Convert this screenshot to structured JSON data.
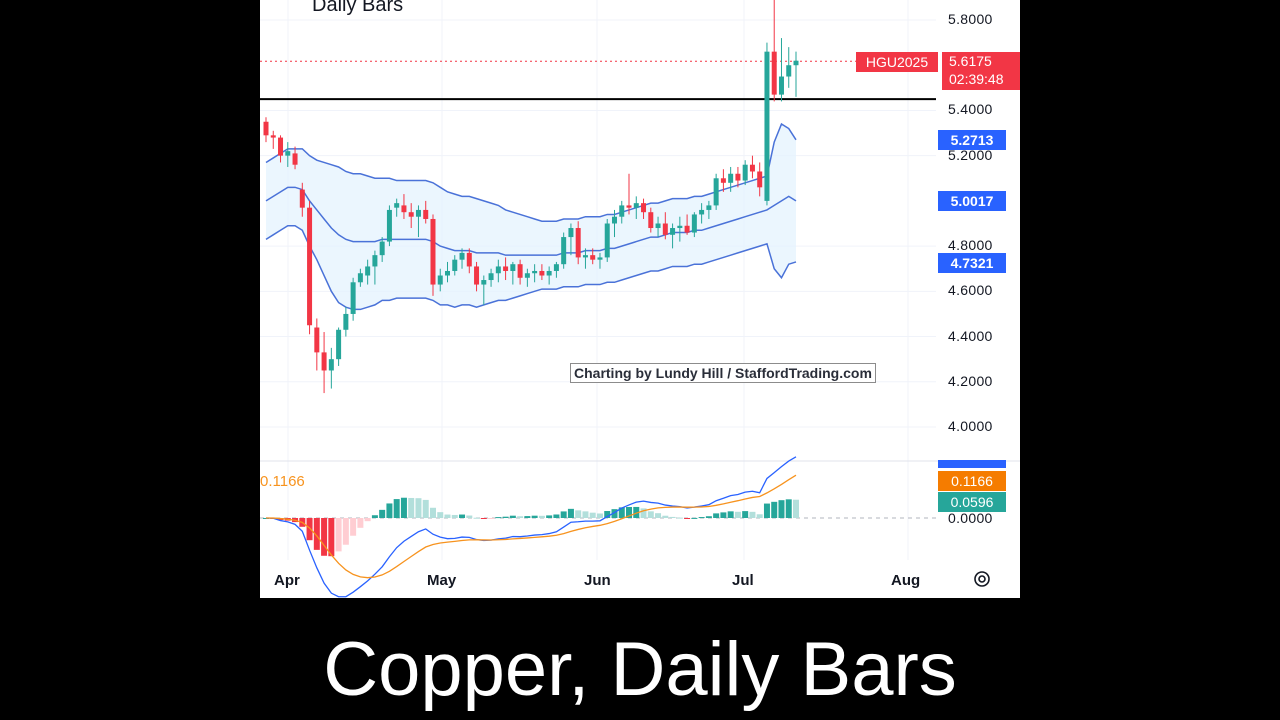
{
  "caption": "Copper, Daily Bars",
  "chart_data": {
    "type": "candlestick",
    "title": "Daily Bars",
    "symbol": "HGU2025",
    "last_price": "5.6175",
    "countdown": "02:39:48",
    "watermark": "Charting by Lundy Hill / StaffordTrading.com",
    "price_axis": {
      "ticks": [
        "5.8000",
        "5.4000",
        "5.2000",
        "4.8000",
        "4.6000",
        "4.4000",
        "4.2000",
        "4.0000"
      ],
      "tick_values": [
        5.8,
        5.4,
        5.2,
        4.8,
        4.6,
        4.4,
        4.2,
        4.0
      ],
      "range": [
        3.95,
        5.85
      ]
    },
    "x_axis_labels": [
      "Apr",
      "May",
      "Jun",
      "Jul",
      "Aug"
    ],
    "horizontal_line": 5.45,
    "bollinger_badges": {
      "upper": "5.2713",
      "middle": "5.0017",
      "lower": "4.7321"
    },
    "macd": {
      "zero_label": "0.0000",
      "left_label": "0.1166",
      "badges": {
        "macd": "0.1166",
        "histogram": "0.0596"
      }
    },
    "colors": {
      "up": "#26a69a",
      "down": "#f23645",
      "band": "#4a72d8",
      "band_fill": "#e3f2fd",
      "signal": "#f7931e",
      "price_tag": "#f23645",
      "badge_blue": "#2962ff",
      "badge_orange": "#f57c00",
      "badge_teal": "#26a69a"
    },
    "candles": [
      [
        5.35,
        5.37,
        5.26,
        5.29
      ],
      [
        5.29,
        5.31,
        5.23,
        5.28
      ],
      [
        5.28,
        5.29,
        5.17,
        5.2
      ],
      [
        5.2,
        5.26,
        5.15,
        5.22
      ],
      [
        5.21,
        5.24,
        5.14,
        5.16
      ],
      [
        5.05,
        5.08,
        4.93,
        4.97
      ],
      [
        4.97,
        5.0,
        4.41,
        4.45
      ],
      [
        4.44,
        4.48,
        4.25,
        4.33
      ],
      [
        4.33,
        4.42,
        4.15,
        4.25
      ],
      [
        4.25,
        4.35,
        4.17,
        4.3
      ],
      [
        4.3,
        4.44,
        4.27,
        4.43
      ],
      [
        4.43,
        4.53,
        4.4,
        4.5
      ],
      [
        4.5,
        4.66,
        4.47,
        4.64
      ],
      [
        4.64,
        4.7,
        4.62,
        4.68
      ],
      [
        4.67,
        4.74,
        4.63,
        4.71
      ],
      [
        4.71,
        4.78,
        4.63,
        4.76
      ],
      [
        4.76,
        4.84,
        4.73,
        4.82
      ],
      [
        4.82,
        4.98,
        4.8,
        4.96
      ],
      [
        4.97,
        5.01,
        4.93,
        4.99
      ],
      [
        4.98,
        5.03,
        4.92,
        4.95
      ],
      [
        4.95,
        4.99,
        4.88,
        4.93
      ],
      [
        4.93,
        4.98,
        4.84,
        4.96
      ],
      [
        4.96,
        5.0,
        4.9,
        4.92
      ],
      [
        4.92,
        4.94,
        4.58,
        4.63
      ],
      [
        4.63,
        4.7,
        4.6,
        4.67
      ],
      [
        4.67,
        4.73,
        4.64,
        4.69
      ],
      [
        4.69,
        4.76,
        4.67,
        4.74
      ],
      [
        4.74,
        4.79,
        4.7,
        4.77
      ],
      [
        4.77,
        4.79,
        4.68,
        4.71
      ],
      [
        4.71,
        4.73,
        4.6,
        4.63
      ],
      [
        4.63,
        4.67,
        4.54,
        4.65
      ],
      [
        4.65,
        4.7,
        4.62,
        4.68
      ],
      [
        4.68,
        4.74,
        4.64,
        4.71
      ],
      [
        4.71,
        4.75,
        4.65,
        4.69
      ],
      [
        4.69,
        4.73,
        4.63,
        4.72
      ],
      [
        4.72,
        4.74,
        4.63,
        4.66
      ],
      [
        4.66,
        4.7,
        4.62,
        4.68
      ],
      [
        4.68,
        4.72,
        4.64,
        4.69
      ],
      [
        4.69,
        4.72,
        4.65,
        4.67
      ],
      [
        4.67,
        4.71,
        4.63,
        4.69
      ],
      [
        4.69,
        4.73,
        4.66,
        4.72
      ],
      [
        4.72,
        4.86,
        4.7,
        4.84
      ],
      [
        4.84,
        4.9,
        4.76,
        4.88
      ],
      [
        4.88,
        4.91,
        4.72,
        4.75
      ],
      [
        4.75,
        4.79,
        4.7,
        4.76
      ],
      [
        4.76,
        4.79,
        4.72,
        4.74
      ],
      [
        4.74,
        4.77,
        4.7,
        4.75
      ],
      [
        4.75,
        4.92,
        4.73,
        4.9
      ],
      [
        4.9,
        4.96,
        4.84,
        4.93
      ],
      [
        4.93,
        5.0,
        4.9,
        4.98
      ],
      [
        4.98,
        5.12,
        4.94,
        4.97
      ],
      [
        4.97,
        5.02,
        4.92,
        4.99
      ],
      [
        4.99,
        5.01,
        4.92,
        4.95
      ],
      [
        4.95,
        4.97,
        4.86,
        4.88
      ],
      [
        4.88,
        4.93,
        4.84,
        4.9
      ],
      [
        4.9,
        4.95,
        4.83,
        4.85
      ],
      [
        4.85,
        4.9,
        4.79,
        4.88
      ],
      [
        4.88,
        4.93,
        4.82,
        4.89
      ],
      [
        4.89,
        4.94,
        4.85,
        4.86
      ],
      [
        4.86,
        4.95,
        4.84,
        4.94
      ],
      [
        4.94,
        4.99,
        4.9,
        4.96
      ],
      [
        4.96,
        5.0,
        4.92,
        4.98
      ],
      [
        4.98,
        5.12,
        4.96,
        5.1
      ],
      [
        5.1,
        5.14,
        5.04,
        5.08
      ],
      [
        5.08,
        5.15,
        5.04,
        5.12
      ],
      [
        5.12,
        5.15,
        5.06,
        5.09
      ],
      [
        5.09,
        5.18,
        5.07,
        5.16
      ],
      [
        5.16,
        5.2,
        5.1,
        5.13
      ],
      [
        5.13,
        5.17,
        5.02,
        5.06
      ],
      [
        5.0,
        5.7,
        4.98,
        5.66
      ],
      [
        5.66,
        5.9,
        5.44,
        5.47
      ],
      [
        5.47,
        5.72,
        5.44,
        5.55
      ],
      [
        5.55,
        5.68,
        5.5,
        5.6
      ],
      [
        5.6,
        5.66,
        5.46,
        5.62
      ]
    ],
    "bb_mid": [
      5.0,
      5.02,
      5.04,
      5.06,
      5.06,
      5.05,
      5.0,
      4.96,
      4.92,
      4.88,
      4.85,
      4.83,
      4.82,
      4.82,
      4.82,
      4.82,
      4.83,
      4.83,
      4.83,
      4.83,
      4.83,
      4.83,
      4.83,
      4.82,
      4.8,
      4.79,
      4.78,
      4.78,
      4.78,
      4.77,
      4.77,
      4.77,
      4.77,
      4.76,
      4.76,
      4.76,
      4.76,
      4.76,
      4.76,
      4.76,
      4.76,
      4.77,
      4.77,
      4.77,
      4.78,
      4.78,
      4.78,
      4.79,
      4.79,
      4.8,
      4.81,
      4.82,
      4.83,
      4.84,
      4.84,
      4.85,
      4.86,
      4.86,
      4.86,
      4.87,
      4.87,
      4.88,
      4.89,
      4.9,
      4.91,
      4.92,
      4.93,
      4.94,
      4.95,
      4.96,
      4.98,
      5.0,
      5.02,
      5.0
    ],
    "bb_width": [
      0.17,
      0.17,
      0.17,
      0.17,
      0.17,
      0.18,
      0.2,
      0.22,
      0.25,
      0.28,
      0.3,
      0.3,
      0.3,
      0.3,
      0.29,
      0.28,
      0.27,
      0.27,
      0.26,
      0.26,
      0.26,
      0.26,
      0.26,
      0.26,
      0.26,
      0.25,
      0.25,
      0.24,
      0.24,
      0.24,
      0.23,
      0.22,
      0.21,
      0.2,
      0.19,
      0.18,
      0.17,
      0.16,
      0.15,
      0.15,
      0.15,
      0.15,
      0.15,
      0.15,
      0.15,
      0.15,
      0.15,
      0.15,
      0.15,
      0.15,
      0.15,
      0.15,
      0.15,
      0.15,
      0.15,
      0.15,
      0.15,
      0.15,
      0.15,
      0.15,
      0.15,
      0.15,
      0.15,
      0.15,
      0.15,
      0.15,
      0.15,
      0.15,
      0.15,
      0.15,
      0.28,
      0.34,
      0.3,
      0.27
    ]
  }
}
